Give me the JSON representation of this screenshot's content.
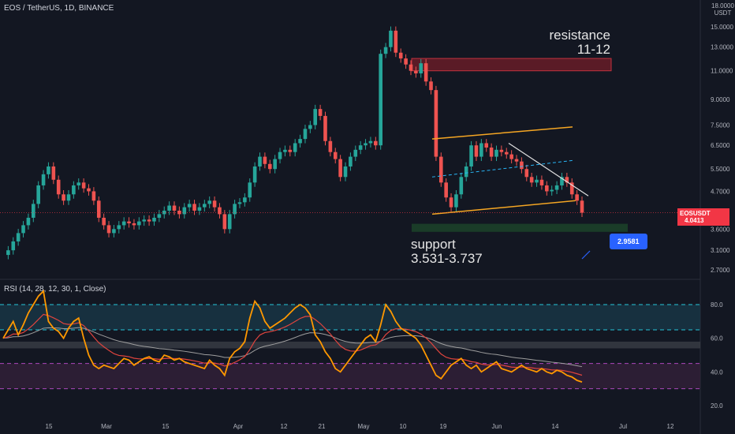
{
  "header": {
    "title": "EOS / TetherUS, 1D, BINANCE",
    "currency_top": "18.0000",
    "currency": "USDT"
  },
  "price_axis": {
    "labels": [
      "15.0000",
      "13.0000",
      "11.0000",
      "9.0000",
      "7.5000",
      "6.5000",
      "5.5000",
      "4.7000",
      "3.6000",
      "3.1000",
      "2.7000"
    ]
  },
  "rsi_axis": {
    "labels": [
      "80.0",
      "60.0",
      "40.0",
      "20.0"
    ]
  },
  "time_axis": {
    "labels": [
      "15",
      "Mar",
      "15",
      "Apr",
      "12",
      "21",
      "May",
      "10",
      "19",
      "Jun",
      "14",
      "Jul",
      "12"
    ]
  },
  "rsi_title": "RSI (14, 28, 12, 30, 1, Close)",
  "annotations": {
    "resistance_line1": "resistance",
    "resistance_line2": "11-12",
    "support_line1": "support",
    "support_line2": "3.531-3.737",
    "target_value": "2.9581"
  },
  "price_tag": {
    "symbol": "EOSUSDT",
    "value": "4.0413"
  },
  "colors": {
    "background": "#131722",
    "up": "#26a69a",
    "down": "#ef5350",
    "channel": "#f5a623",
    "trendline": "#e0e0e0",
    "midline": "#29b6f6",
    "resistance_zone": "#8b1e2a",
    "support_zone": "#1e4d2b",
    "rsi": "#ff9800",
    "rsi_signal": "#e0443e",
    "rsi_slow": "#9e9e9e",
    "target_label": "#2962ff",
    "price_tag": "#f23645"
  },
  "chart_data": [
    {
      "type": "candlestick",
      "title": "EOS / TetherUS, 1D, BINANCE",
      "yscale": "log",
      "ylim": [
        2.6,
        18
      ],
      "x_tick_labels": [
        "15",
        "Mar",
        "15",
        "Apr",
        "12",
        "21",
        "May",
        "10",
        "19",
        "Jun",
        "14",
        "Jul",
        "12"
      ],
      "y_tick_labels": [
        "15.0000",
        "13.0000",
        "11.0000",
        "9.0000",
        "7.5000",
        "6.5000",
        "5.5000",
        "4.7000",
        "3.6000",
        "3.1000",
        "2.7000"
      ],
      "last_price": 4.0413,
      "resistance_zone": [
        11.0,
        12.0
      ],
      "support_zone": [
        3.531,
        3.737
      ],
      "target": 2.9581,
      "closes": [
        3.0,
        3.1,
        3.3,
        3.5,
        3.7,
        3.9,
        4.3,
        4.9,
        5.3,
        5.6,
        5.1,
        4.6,
        4.4,
        4.6,
        4.9,
        5.0,
        4.8,
        4.7,
        4.4,
        3.9,
        3.7,
        3.5,
        3.6,
        3.7,
        3.8,
        3.75,
        3.7,
        3.8,
        3.85,
        3.8,
        3.9,
        4.0,
        4.1,
        4.25,
        4.1,
        4.0,
        4.2,
        4.3,
        4.1,
        4.2,
        4.3,
        4.4,
        4.2,
        4.0,
        3.6,
        4.0,
        4.3,
        4.35,
        4.5,
        5.0,
        5.6,
        6.0,
        5.7,
        5.5,
        5.9,
        6.2,
        6.3,
        6.2,
        6.6,
        6.8,
        7.3,
        7.5,
        8.4,
        8.0,
        6.7,
        6.2,
        5.9,
        5.2,
        5.6,
        6.0,
        6.3,
        6.5,
        6.6,
        6.7,
        6.5,
        12.4,
        13.0,
        14.6,
        12.5,
        12.0,
        11.5,
        11.0,
        10.8,
        11.6,
        10.2,
        9.6,
        6.0,
        5.0,
        4.5,
        4.2,
        4.6,
        5.2,
        5.6,
        6.5,
        6.0,
        6.6,
        6.4,
        6.0,
        6.3,
        6.2,
        6.1,
        5.9,
        5.8,
        5.5,
        5.2,
        5.0,
        5.1,
        4.9,
        4.7,
        4.75,
        4.9,
        5.2,
        5.0,
        4.6,
        4.4,
        4.0413
      ],
      "channel_upper": [
        [
          5.55,
          6.8
        ],
        [
          7.25,
          7.4
        ]
      ],
      "channel_lower": [
        [
          5.5,
          4.0
        ],
        [
          7.3,
          4.4
        ]
      ]
    },
    {
      "type": "line",
      "title": "RSI (14, 28, 12, 30, 1, Close)",
      "ylim": [
        15,
        90
      ],
      "y_tick_labels": [
        "80.0",
        "60.0",
        "40.0",
        "20.0"
      ],
      "bands": [
        80,
        65,
        45,
        30
      ],
      "series": [
        {
          "values": [
            60,
            65,
            70,
            62,
            68,
            75,
            80,
            85,
            88,
            70,
            66,
            64,
            60,
            66,
            70,
            72,
            60,
            50,
            44,
            42,
            44,
            43,
            42,
            45,
            48,
            47,
            44,
            46,
            48,
            49,
            47,
            46,
            50,
            49,
            47,
            48,
            46,
            45,
            44,
            43,
            42,
            47,
            44,
            42,
            38,
            48,
            52,
            54,
            58,
            72,
            82,
            78,
            70,
            66,
            68,
            70,
            72,
            75,
            78,
            80,
            78,
            74,
            62,
            58,
            52,
            48,
            42,
            40,
            44,
            48,
            52,
            56,
            60,
            62,
            58,
            68,
            80,
            76,
            70,
            66,
            64,
            62,
            60,
            56,
            50,
            44,
            38,
            36,
            40,
            44,
            46,
            48,
            44,
            42,
            44,
            40,
            42,
            44,
            46,
            42,
            41,
            40,
            42,
            44,
            42,
            41,
            40,
            42,
            40,
            39,
            41,
            40,
            38,
            37,
            35,
            34
          ]
        }
      ]
    }
  ]
}
